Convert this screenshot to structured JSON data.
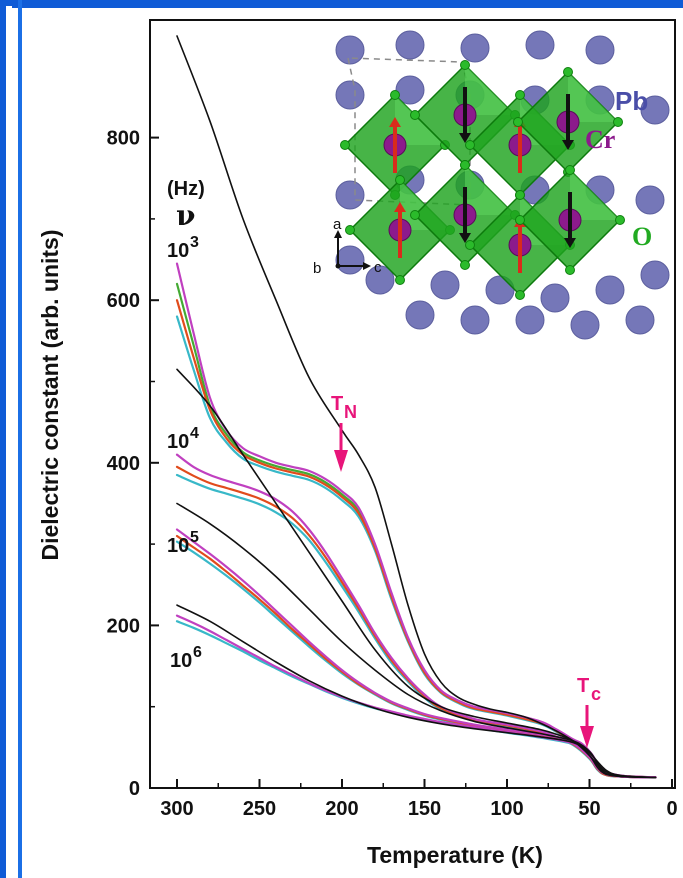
{
  "chart_data": {
    "type": "line",
    "xlabel": "Temperature (K)",
    "ylabel": "Dielectric constant (arb. units)",
    "xlim": [
      0,
      300
    ],
    "ylim": [
      0,
      900
    ],
    "x_ticks": [
      300,
      250,
      200,
      150,
      100,
      50,
      0
    ],
    "y_ticks": [
      0,
      200,
      400,
      600,
      800
    ],
    "x_reversed": true,
    "grid": false,
    "frequency_header": "(Hz)",
    "frequency_symbol": "ν",
    "frequency_labels": [
      {
        "base": "10",
        "exp": "3"
      },
      {
        "base": "10",
        "exp": "4"
      },
      {
        "base": "10",
        "exp": "5"
      },
      {
        "base": "10",
        "exp": "6"
      }
    ],
    "annotations": [
      {
        "text": "T",
        "sub": "N",
        "x": 200,
        "y": 360,
        "color": "#e8157a"
      },
      {
        "text": "T",
        "sub": "c",
        "x": 50,
        "y": 55,
        "color": "#e8157a"
      }
    ],
    "inset": {
      "labels": [
        "Pb",
        "Cr",
        "O"
      ],
      "axis_labels": [
        "a",
        "b",
        "c"
      ],
      "colors": {
        "pb": "#7577b8",
        "cr": "#8c1a8c",
        "o": "#2bbb2b",
        "octahedron": "#1fa31f"
      }
    },
    "series": [
      {
        "group": "10^3",
        "color": "#111111",
        "x": [
          300,
          280,
          260,
          240,
          220,
          200,
          190,
          180,
          170,
          160,
          150,
          140,
          130,
          120,
          110,
          100,
          90,
          80,
          70,
          60,
          55,
          50,
          45,
          40,
          30,
          10
        ],
        "y": [
          925,
          820,
          700,
          600,
          505,
          440,
          410,
          370,
          300,
          225,
          165,
          130,
          112,
          103,
          97,
          93,
          88,
          80,
          70,
          58,
          50,
          40,
          28,
          18,
          14,
          13
        ]
      },
      {
        "group": "10^3",
        "color": "#c040c0",
        "x": [
          300,
          290,
          280,
          270,
          260,
          250,
          240,
          230,
          220,
          210,
          200,
          190,
          180,
          170,
          160,
          150,
          140,
          130,
          120,
          100,
          80,
          70,
          60,
          55,
          50,
          45,
          40,
          30,
          10
        ],
        "y": [
          645,
          560,
          480,
          440,
          418,
          408,
          400,
          395,
          390,
          380,
          365,
          345,
          300,
          240,
          185,
          145,
          120,
          108,
          100,
          92,
          82,
          72,
          60,
          55,
          45,
          30,
          18,
          14,
          13
        ]
      },
      {
        "group": "10^3",
        "color": "#e14b1c",
        "x": [
          300,
          290,
          280,
          270,
          260,
          250,
          240,
          230,
          220,
          210,
          200,
          190,
          180,
          170,
          160,
          150,
          140,
          130,
          120,
          100,
          80,
          70,
          60,
          55,
          50,
          45,
          40,
          30,
          10
        ],
        "y": [
          600,
          530,
          465,
          430,
          410,
          400,
          393,
          388,
          383,
          373,
          358,
          338,
          295,
          235,
          182,
          142,
          118,
          106,
          98,
          90,
          80,
          70,
          58,
          53,
          43,
          28,
          17,
          14,
          13
        ]
      },
      {
        "group": "10^3",
        "color": "#44aa33",
        "x": [
          300,
          290,
          280,
          270,
          260,
          250,
          240,
          230,
          220,
          210,
          200,
          190,
          180,
          170,
          160,
          150,
          140,
          130,
          120,
          100,
          80,
          70,
          60,
          55,
          50,
          45,
          40,
          30,
          10
        ],
        "y": [
          620,
          545,
          470,
          435,
          413,
          403,
          396,
          391,
          386,
          376,
          361,
          341,
          297,
          237,
          183,
          143,
          119,
          107,
          99,
          91,
          81,
          71,
          59,
          54,
          44,
          29,
          17,
          14,
          13
        ]
      },
      {
        "group": "10^3",
        "color": "#38b8c8",
        "x": [
          300,
          290,
          280,
          270,
          260,
          250,
          240,
          230,
          220,
          210,
          200,
          190,
          180,
          170,
          160,
          150,
          140,
          130,
          120,
          100,
          80,
          70,
          60,
          55,
          50,
          45,
          40,
          30,
          10
        ],
        "y": [
          580,
          515,
          455,
          425,
          405,
          396,
          389,
          384,
          379,
          369,
          354,
          334,
          292,
          232,
          180,
          140,
          117,
          105,
          97,
          89,
          79,
          69,
          57,
          52,
          42,
          27,
          16,
          14,
          13
        ]
      },
      {
        "group": "10^4",
        "color": "#111111",
        "x": [
          300,
          280,
          260,
          240,
          220,
          200,
          180,
          160,
          140,
          120,
          100,
          80,
          70,
          60,
          50,
          45,
          40,
          30,
          10
        ],
        "y": [
          515,
          470,
          410,
          350,
          290,
          230,
          170,
          125,
          100,
          88,
          80,
          72,
          66,
          58,
          40,
          25,
          17,
          14,
          13
        ]
      },
      {
        "group": "10^4",
        "color": "#c040c0",
        "x": [
          300,
          290,
          280,
          270,
          260,
          250,
          240,
          230,
          220,
          210,
          200,
          190,
          180,
          170,
          160,
          150,
          140,
          120,
          100,
          80,
          70,
          60,
          50,
          45,
          40,
          30,
          10
        ],
        "y": [
          410,
          395,
          385,
          378,
          372,
          365,
          355,
          340,
          318,
          290,
          258,
          225,
          190,
          160,
          135,
          115,
          100,
          85,
          78,
          70,
          63,
          55,
          38,
          24,
          17,
          14,
          13
        ]
      },
      {
        "group": "10^4",
        "color": "#e14b1c",
        "x": [
          300,
          290,
          280,
          270,
          260,
          250,
          240,
          230,
          220,
          210,
          200,
          190,
          180,
          170,
          160,
          150,
          140,
          120,
          100,
          80,
          70,
          60,
          50,
          45,
          40,
          30,
          10
        ],
        "y": [
          395,
          384,
          375,
          369,
          363,
          356,
          346,
          332,
          311,
          284,
          253,
          221,
          187,
          157,
          133,
          113,
          98,
          84,
          77,
          69,
          62,
          54,
          37,
          23,
          16,
          14,
          13
        ]
      },
      {
        "group": "10^4",
        "color": "#38b8c8",
        "x": [
          300,
          290,
          280,
          270,
          260,
          250,
          240,
          230,
          220,
          210,
          200,
          190,
          180,
          170,
          160,
          150,
          140,
          120,
          100,
          80,
          70,
          60,
          50,
          45,
          40,
          30,
          10
        ],
        "y": [
          385,
          376,
          368,
          362,
          356,
          349,
          339,
          325,
          305,
          278,
          248,
          217,
          184,
          154,
          131,
          111,
          97,
          83,
          76,
          68,
          61,
          53,
          36,
          22,
          16,
          14,
          13
        ]
      },
      {
        "group": "10^5",
        "color": "#111111",
        "x": [
          300,
          280,
          260,
          240,
          220,
          200,
          180,
          160,
          140,
          120,
          100,
          80,
          60,
          50,
          45,
          40,
          30,
          10
        ],
        "y": [
          350,
          325,
          295,
          260,
          220,
          180,
          145,
          115,
          95,
          82,
          74,
          67,
          58,
          45,
          30,
          20,
          15,
          13
        ]
      },
      {
        "group": "10^5",
        "color": "#c040c0",
        "x": [
          300,
          290,
          280,
          270,
          260,
          250,
          240,
          230,
          220,
          210,
          200,
          190,
          180,
          170,
          160,
          150,
          140,
          120,
          100,
          80,
          60,
          50,
          45,
          40,
          30,
          10
        ],
        "y": [
          318,
          303,
          288,
          272,
          255,
          237,
          218,
          199,
          180,
          162,
          145,
          130,
          117,
          106,
          98,
          91,
          86,
          78,
          72,
          66,
          58,
          45,
          30,
          20,
          15,
          13
        ]
      },
      {
        "group": "10^5",
        "color": "#e14b1c",
        "x": [
          300,
          290,
          280,
          270,
          260,
          250,
          240,
          230,
          220,
          210,
          200,
          190,
          180,
          170,
          160,
          150,
          140,
          120,
          100,
          80,
          60,
          50,
          45,
          40,
          30,
          10
        ],
        "y": [
          310,
          296,
          282,
          266,
          249,
          232,
          214,
          195,
          177,
          159,
          143,
          128,
          116,
          105,
          97,
          90,
          85,
          77,
          71,
          65,
          57,
          44,
          29,
          19,
          15,
          13
        ]
      },
      {
        "group": "10^5",
        "color": "#38b8c8",
        "x": [
          300,
          290,
          280,
          270,
          260,
          250,
          240,
          230,
          220,
          210,
          200,
          190,
          180,
          170,
          160,
          150,
          140,
          120,
          100,
          80,
          60,
          50,
          45,
          40,
          30,
          10
        ],
        "y": [
          303,
          290,
          276,
          261,
          245,
          228,
          210,
          192,
          174,
          157,
          141,
          127,
          115,
          104,
          96,
          89,
          84,
          76,
          70,
          64,
          56,
          43,
          28,
          19,
          15,
          13
        ]
      },
      {
        "group": "10^6",
        "color": "#111111",
        "x": [
          300,
          280,
          260,
          240,
          220,
          200,
          180,
          160,
          140,
          120,
          100,
          80,
          60,
          50,
          40,
          30,
          10
        ],
        "y": [
          225,
          205,
          180,
          155,
          132,
          113,
          98,
          87,
          79,
          73,
          68,
          63,
          56,
          43,
          22,
          15,
          13
        ]
      },
      {
        "group": "10^6",
        "color": "#c040c0",
        "x": [
          300,
          290,
          280,
          270,
          260,
          250,
          240,
          230,
          220,
          210,
          200,
          190,
          180,
          170,
          160,
          150,
          140,
          120,
          100,
          80,
          60,
          50,
          40,
          30,
          10
        ],
        "y": [
          212,
          203,
          193,
          182,
          171,
          160,
          149,
          139,
          129,
          120,
          112,
          105,
          99,
          94,
          89,
          85,
          81,
          75,
          69,
          63,
          55,
          42,
          21,
          15,
          13
        ]
      },
      {
        "group": "10^6",
        "color": "#38b8c8",
        "x": [
          300,
          290,
          280,
          270,
          260,
          250,
          240,
          230,
          220,
          210,
          200,
          190,
          180,
          170,
          160,
          150,
          140,
          120,
          100,
          80,
          60,
          50,
          40,
          30,
          10
        ],
        "y": [
          205,
          197,
          188,
          178,
          168,
          157,
          147,
          137,
          128,
          119,
          111,
          104,
          98,
          93,
          88,
          84,
          80,
          74,
          68,
          62,
          54,
          41,
          20,
          15,
          13
        ]
      }
    ]
  }
}
